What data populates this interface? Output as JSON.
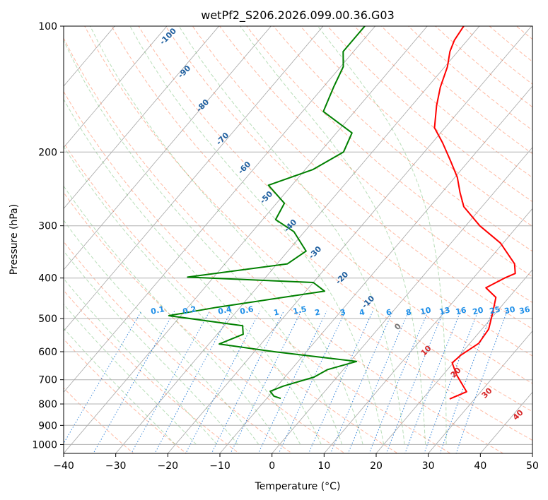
{
  "chart_data": {
    "type": "line",
    "title": "wetPf2_S206.2026.099.00.36.G03",
    "xlabel": "Temperature (°C)",
    "ylabel": "Pressure (hPa)",
    "xlim": [
      -40,
      50
    ],
    "ylim": [
      1050,
      100
    ],
    "y_scale": "log",
    "grid": true,
    "x_ticks": [
      -40,
      -30,
      -20,
      -10,
      0,
      10,
      20,
      30,
      40,
      50
    ],
    "y_ticks": [
      1000,
      900,
      800,
      700,
      600,
      500,
      400,
      300,
      200,
      100
    ],
    "skew": true,
    "colors": {
      "temperature": "#ff0000",
      "dewpoint": "#008000",
      "dry_adiabat": "#ff6633",
      "moist_adiabat": "#33a033",
      "mixing_ratio": "#1f77d4",
      "isotherm": "#888888",
      "dry_adiabat_label": "#d62728",
      "isotherm_label": "#1f5f9f"
    },
    "series": [
      {
        "key": "temperature",
        "points": [
          [
            25.2,
            778
          ],
          [
            27.3,
            748
          ],
          [
            22.5,
            680
          ],
          [
            19.8,
            638
          ],
          [
            20.2,
            612
          ],
          [
            21.7,
            573
          ],
          [
            21.3,
            530
          ],
          [
            19.2,
            480
          ],
          [
            17.5,
            445
          ],
          [
            14.0,
            422
          ],
          [
            16.0,
            400
          ],
          [
            17.3,
            390
          ],
          [
            15.6,
            370
          ],
          [
            9.5,
            330
          ],
          [
            2.7,
            300
          ],
          [
            -3.5,
            270
          ],
          [
            -6.5,
            250
          ],
          [
            -9.5,
            230
          ],
          [
            -13.5,
            210
          ],
          [
            -18.0,
            190
          ],
          [
            -22.0,
            175
          ],
          [
            -25.2,
            155
          ],
          [
            -27.5,
            140
          ],
          [
            -29.5,
            125
          ],
          [
            -31.5,
            115
          ],
          [
            -32.5,
            108
          ],
          [
            -33.0,
            100
          ]
        ]
      },
      {
        "key": "dewpoint",
        "points": [
          [
            -7.3,
            776
          ],
          [
            -9.0,
            766
          ],
          [
            -10.5,
            746
          ],
          [
            -8.8,
            725
          ],
          [
            -4.4,
            690
          ],
          [
            -3.0,
            662
          ],
          [
            1.2,
            633
          ],
          [
            -16.2,
            600
          ],
          [
            -28.0,
            575
          ],
          [
            -25.0,
            545
          ],
          [
            -26.5,
            520
          ],
          [
            -42.3,
            492
          ],
          [
            -34.5,
            470
          ],
          [
            -16.4,
            430
          ],
          [
            -20.0,
            410
          ],
          [
            -45.0,
            398
          ],
          [
            -28.0,
            370
          ],
          [
            -26.5,
            345
          ],
          [
            -32.0,
            310
          ],
          [
            -37.5,
            290
          ],
          [
            -38.5,
            265
          ],
          [
            -44.5,
            240
          ],
          [
            -38.5,
            220
          ],
          [
            -35.5,
            200
          ],
          [
            -37.0,
            180
          ],
          [
            -46.0,
            160
          ],
          [
            -48.0,
            140
          ],
          [
            -49.5,
            125
          ],
          [
            -52.0,
            115
          ],
          [
            -52.0,
            100
          ]
        ]
      }
    ],
    "dry_adiabat_labels": [
      "10",
      "20",
      "30",
      "40"
    ],
    "moist_adiabat_labels": [
      "0"
    ],
    "isotherm_labels": [
      "-100",
      "-90",
      "-80",
      "-70",
      "-60",
      "-50",
      "-40",
      "-30",
      "-20",
      "-10"
    ],
    "mixing_ratio_labels": [
      "0.1",
      "0.2",
      "0.4",
      "0.6",
      "1",
      "1.5",
      "2",
      "3",
      "4",
      "6",
      "8",
      "10",
      "13",
      "16",
      "20",
      "25",
      "30",
      "36"
    ]
  }
}
